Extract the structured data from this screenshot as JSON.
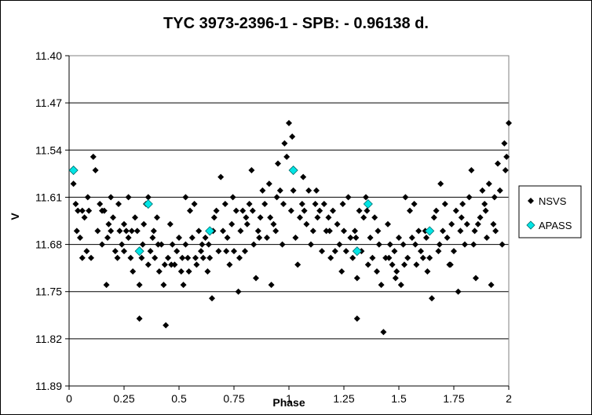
{
  "chart_data": {
    "type": "scatter",
    "title": "TYC 3973-2396-1  - SPB: - 0.96138 d.",
    "xlabel": "Phase",
    "ylabel": "V",
    "xlim": [
      0,
      2
    ],
    "ylim": [
      11.89,
      11.4
    ],
    "y_inverted": true,
    "grid": "horizontal",
    "legend_position": "right",
    "x_ticks": [
      "0",
      "0.25",
      "0.5",
      "0.75",
      "1",
      "1.25",
      "1.5",
      "1.75",
      "2"
    ],
    "y_ticks": [
      "11.40",
      "11.47",
      "11.54",
      "11.61",
      "11.68",
      "11.75",
      "11.82",
      "11.89"
    ],
    "colors": {
      "NSVS": "#000000",
      "APASS": "#00e5e5"
    },
    "series": [
      {
        "name": "NSVS",
        "marker": "diamond",
        "points": [
          [
            0.02,
            11.59
          ],
          [
            0.03,
            11.62
          ],
          [
            0.04,
            11.63
          ],
          [
            0.05,
            11.67
          ],
          [
            0.06,
            11.63
          ],
          [
            0.06,
            11.7
          ],
          [
            0.07,
            11.64
          ],
          [
            0.08,
            11.69
          ],
          [
            0.09,
            11.63
          ],
          [
            0.1,
            11.7
          ],
          [
            0.11,
            11.55
          ],
          [
            0.12,
            11.57
          ],
          [
            0.14,
            11.62
          ],
          [
            0.15,
            11.63
          ],
          [
            0.15,
            11.68
          ],
          [
            0.16,
            11.63
          ],
          [
            0.17,
            11.74
          ],
          [
            0.18,
            11.65
          ],
          [
            0.19,
            11.66
          ],
          [
            0.19,
            11.61
          ],
          [
            0.2,
            11.64
          ],
          [
            0.21,
            11.69
          ],
          [
            0.22,
            11.7
          ],
          [
            0.23,
            11.66
          ],
          [
            0.24,
            11.68
          ],
          [
            0.25,
            11.69
          ],
          [
            0.25,
            11.65
          ],
          [
            0.26,
            11.66
          ],
          [
            0.27,
            11.61
          ],
          [
            0.27,
            11.67
          ],
          [
            0.28,
            11.7
          ],
          [
            0.29,
            11.72
          ],
          [
            0.3,
            11.64
          ],
          [
            0.31,
            11.66
          ],
          [
            0.32,
            11.74
          ],
          [
            0.32,
            11.79
          ],
          [
            0.33,
            11.7
          ],
          [
            0.34,
            11.65
          ],
          [
            0.35,
            11.62
          ],
          [
            0.36,
            11.71
          ],
          [
            0.36,
            11.61
          ],
          [
            0.37,
            11.69
          ],
          [
            0.38,
            11.67
          ],
          [
            0.39,
            11.7
          ],
          [
            0.4,
            11.64
          ],
          [
            0.41,
            11.72
          ],
          [
            0.42,
            11.68
          ],
          [
            0.43,
            11.74
          ],
          [
            0.44,
            11.8
          ],
          [
            0.45,
            11.7
          ],
          [
            0.46,
            11.65
          ],
          [
            0.47,
            11.68
          ],
          [
            0.48,
            11.71
          ],
          [
            0.49,
            11.69
          ],
          [
            0.5,
            11.67
          ],
          [
            0.51,
            11.72
          ],
          [
            0.52,
            11.74
          ],
          [
            0.53,
            11.68
          ],
          [
            0.53,
            11.61
          ],
          [
            0.54,
            11.7
          ],
          [
            0.55,
            11.63
          ],
          [
            0.56,
            11.67
          ],
          [
            0.57,
            11.62
          ],
          [
            0.58,
            11.71
          ],
          [
            0.59,
            11.66
          ],
          [
            0.6,
            11.69
          ],
          [
            0.61,
            11.7
          ],
          [
            0.62,
            11.67
          ],
          [
            0.63,
            11.72
          ],
          [
            0.64,
            11.7
          ],
          [
            0.65,
            11.76
          ],
          [
            0.66,
            11.64
          ],
          [
            0.67,
            11.63
          ],
          [
            0.68,
            11.69
          ],
          [
            0.69,
            11.58
          ],
          [
            0.7,
            11.66
          ],
          [
            0.71,
            11.62
          ],
          [
            0.72,
            11.67
          ],
          [
            0.73,
            11.71
          ],
          [
            0.74,
            11.65
          ],
          [
            0.75,
            11.69
          ],
          [
            0.76,
            11.63
          ],
          [
            0.77,
            11.75
          ],
          [
            0.78,
            11.66
          ],
          [
            0.79,
            11.63
          ],
          [
            0.8,
            11.69
          ],
          [
            0.81,
            11.65
          ],
          [
            0.82,
            11.62
          ],
          [
            0.83,
            11.57
          ],
          [
            0.84,
            11.68
          ],
          [
            0.85,
            11.73
          ],
          [
            0.86,
            11.66
          ],
          [
            0.87,
            11.64
          ],
          [
            0.88,
            11.6
          ],
          [
            0.89,
            11.62
          ],
          [
            0.9,
            11.67
          ],
          [
            0.91,
            11.59
          ],
          [
            0.92,
            11.74
          ],
          [
            0.93,
            11.65
          ],
          [
            0.94,
            11.66
          ],
          [
            0.95,
            11.56
          ],
          [
            0.96,
            11.6
          ],
          [
            0.97,
            11.68
          ],
          [
            0.98,
            11.53
          ],
          [
            0.99,
            11.55
          ],
          [
            1.0,
            11.5
          ],
          [
            1.01,
            11.63
          ],
          [
            1.02,
            11.6
          ],
          [
            1.03,
            11.67
          ],
          [
            1.04,
            11.71
          ],
          [
            1.05,
            11.64
          ],
          [
            1.06,
            11.62
          ],
          [
            1.07,
            11.63
          ],
          [
            1.08,
            11.65
          ],
          [
            1.09,
            11.6
          ],
          [
            1.1,
            11.68
          ],
          [
            1.11,
            11.66
          ],
          [
            1.12,
            11.62
          ],
          [
            1.13,
            11.64
          ],
          [
            1.14,
            11.63
          ],
          [
            1.15,
            11.69
          ],
          [
            1.16,
            11.62
          ],
          [
            1.17,
            11.66
          ],
          [
            1.18,
            11.64
          ],
          [
            1.19,
            11.7
          ],
          [
            1.2,
            11.63
          ],
          [
            1.21,
            11.69
          ],
          [
            1.22,
            11.65
          ],
          [
            1.23,
            11.68
          ],
          [
            1.24,
            11.72
          ],
          [
            1.25,
            11.66
          ],
          [
            1.26,
            11.69
          ],
          [
            1.27,
            11.61
          ],
          [
            1.28,
            11.67
          ],
          [
            1.29,
            11.7
          ],
          [
            1.3,
            11.66
          ],
          [
            1.31,
            11.73
          ],
          [
            1.31,
            11.79
          ],
          [
            1.32,
            11.63
          ],
          [
            1.33,
            11.69
          ],
          [
            1.34,
            11.64
          ],
          [
            1.35,
            11.61
          ],
          [
            1.36,
            11.71
          ],
          [
            1.37,
            11.67
          ],
          [
            1.38,
            11.7
          ],
          [
            1.39,
            11.64
          ],
          [
            1.4,
            11.72
          ],
          [
            1.41,
            11.68
          ],
          [
            1.42,
            11.74
          ],
          [
            1.43,
            11.81
          ],
          [
            1.44,
            11.7
          ],
          [
            1.45,
            11.65
          ],
          [
            1.46,
            11.68
          ],
          [
            1.47,
            11.71
          ],
          [
            1.48,
            11.69
          ],
          [
            1.49,
            11.72
          ],
          [
            1.5,
            11.67
          ],
          [
            1.51,
            11.74
          ],
          [
            1.52,
            11.68
          ],
          [
            1.53,
            11.61
          ],
          [
            1.54,
            11.7
          ],
          [
            1.55,
            11.63
          ],
          [
            1.56,
            11.67
          ],
          [
            1.57,
            11.62
          ],
          [
            1.58,
            11.71
          ],
          [
            1.59,
            11.66
          ],
          [
            1.6,
            11.69
          ],
          [
            1.61,
            11.7
          ],
          [
            1.62,
            11.66
          ],
          [
            1.63,
            11.72
          ],
          [
            1.64,
            11.7
          ],
          [
            1.65,
            11.76
          ],
          [
            1.66,
            11.64
          ],
          [
            1.67,
            11.63
          ],
          [
            1.68,
            11.69
          ],
          [
            1.69,
            11.59
          ],
          [
            1.7,
            11.66
          ],
          [
            1.71,
            11.62
          ],
          [
            1.72,
            11.67
          ],
          [
            1.73,
            11.71
          ],
          [
            1.74,
            11.65
          ],
          [
            1.75,
            11.69
          ],
          [
            1.76,
            11.63
          ],
          [
            1.77,
            11.75
          ],
          [
            1.78,
            11.66
          ],
          [
            1.79,
            11.62
          ],
          [
            1.8,
            11.68
          ],
          [
            1.81,
            11.65
          ],
          [
            1.82,
            11.61
          ],
          [
            1.83,
            11.57
          ],
          [
            1.84,
            11.68
          ],
          [
            1.85,
            11.73
          ],
          [
            1.86,
            11.65
          ],
          [
            1.87,
            11.64
          ],
          [
            1.88,
            11.6
          ],
          [
            1.89,
            11.62
          ],
          [
            1.9,
            11.67
          ],
          [
            1.91,
            11.59
          ],
          [
            1.92,
            11.74
          ],
          [
            1.93,
            11.65
          ],
          [
            1.94,
            11.66
          ],
          [
            1.95,
            11.56
          ],
          [
            1.96,
            11.6
          ],
          [
            1.97,
            11.68
          ],
          [
            1.98,
            11.53
          ],
          [
            1.99,
            11.55
          ],
          [
            2.0,
            11.5
          ],
          [
            0.035,
            11.66
          ],
          [
            0.085,
            11.61
          ],
          [
            0.13,
            11.66
          ],
          [
            0.175,
            11.67
          ],
          [
            0.225,
            11.62
          ],
          [
            0.285,
            11.66
          ],
          [
            0.335,
            11.68
          ],
          [
            0.385,
            11.66
          ],
          [
            0.405,
            11.68
          ],
          [
            0.435,
            11.71
          ],
          [
            0.465,
            11.71
          ],
          [
            0.515,
            11.7
          ],
          [
            0.545,
            11.72
          ],
          [
            0.575,
            11.7
          ],
          [
            0.605,
            11.68
          ],
          [
            0.635,
            11.68
          ],
          [
            0.655,
            11.66
          ],
          [
            0.715,
            11.69
          ],
          [
            0.745,
            11.61
          ],
          [
            0.775,
            11.7
          ],
          [
            0.805,
            11.64
          ],
          [
            0.835,
            11.63
          ],
          [
            0.865,
            11.67
          ],
          [
            0.915,
            11.64
          ],
          [
            0.945,
            11.61
          ],
          [
            0.975,
            11.62
          ],
          [
            1.015,
            11.52
          ],
          [
            1.065,
            11.58
          ],
          [
            1.125,
            11.6
          ],
          [
            1.185,
            11.66
          ],
          [
            1.245,
            11.62
          ],
          [
            1.305,
            11.67
          ],
          [
            1.355,
            11.63
          ],
          [
            1.405,
            11.66
          ],
          [
            1.455,
            11.7
          ],
          [
            1.485,
            11.73
          ],
          [
            1.525,
            11.71
          ],
          [
            1.575,
            11.68
          ],
          [
            1.625,
            11.67
          ],
          [
            1.685,
            11.68
          ],
          [
            1.735,
            11.71
          ],
          [
            1.785,
            11.64
          ],
          [
            1.845,
            11.66
          ],
          [
            1.895,
            11.63
          ],
          [
            1.935,
            11.61
          ],
          [
            1.985,
            11.57
          ]
        ]
      },
      {
        "name": "APASS",
        "marker": "diamond",
        "points": [
          [
            0.02,
            11.57
          ],
          [
            0.32,
            11.69
          ],
          [
            0.36,
            11.62
          ],
          [
            0.64,
            11.66
          ],
          [
            1.02,
            11.57
          ],
          [
            1.31,
            11.69
          ],
          [
            1.36,
            11.62
          ],
          [
            1.64,
            11.66
          ]
        ]
      }
    ]
  }
}
